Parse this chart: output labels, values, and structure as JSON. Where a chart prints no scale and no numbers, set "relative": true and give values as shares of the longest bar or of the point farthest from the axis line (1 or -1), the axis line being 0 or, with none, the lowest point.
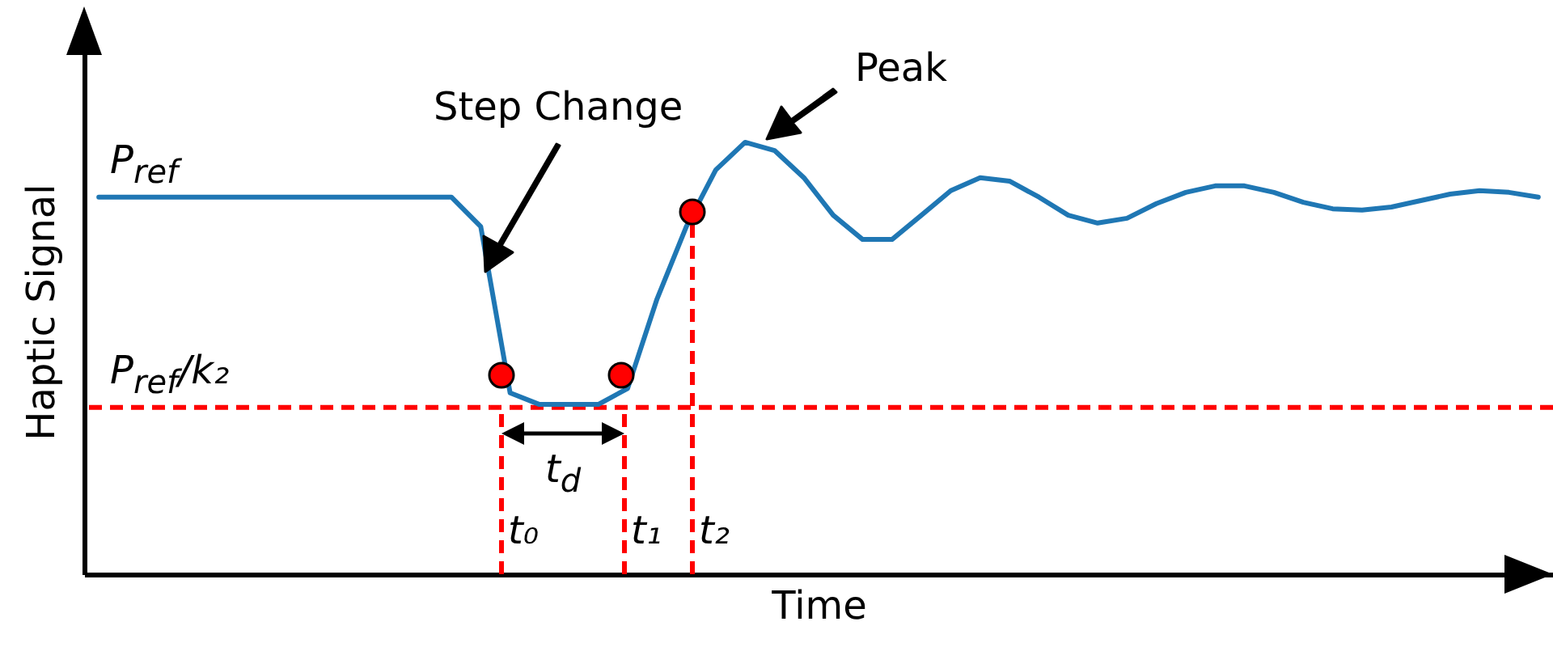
{
  "chart_data": {
    "type": "line",
    "relative": true,
    "xlabel": "Time",
    "ylabel": "Haptic Signal",
    "categories": [
      null,
      null,
      null,
      null,
      null,
      null,
      null,
      null,
      null,
      null,
      null,
      null,
      null,
      null,
      null,
      null,
      null,
      null,
      null,
      null,
      null,
      null,
      null,
      null,
      null,
      null,
      null,
      null,
      null,
      null,
      null,
      null,
      null,
      null,
      null,
      null,
      null,
      null,
      null,
      null,
      null,
      null,
      null,
      null,
      null,
      null,
      null,
      null,
      null,
      null
    ],
    "series": [
      {
        "color": "#1f77b4",
        "values": [
          0.873,
          0.873,
          0.873,
          0.873,
          0.873,
          0.873,
          0.873,
          0.873,
          0.873,
          0.873,
          0.873,
          0.873,
          0.873,
          0.805,
          0.42,
          0.393,
          0.393,
          0.393,
          0.43,
          0.637,
          0.805,
          0.936,
          1.0,
          0.981,
          0.918,
          0.831,
          0.775,
          0.775,
          0.831,
          0.888,
          0.918,
          0.91,
          0.873,
          0.831,
          0.813,
          0.824,
          0.858,
          0.884,
          0.899,
          0.899,
          0.884,
          0.861,
          0.846,
          0.843,
          0.85,
          0.865,
          0.88,
          0.888,
          0.884,
          0.873
        ]
      }
    ],
    "ref_lines": [
      {
        "axis": "y",
        "value": 0.386,
        "label": "P$_{ref}$/k₂",
        "color": "#ff0000",
        "line_style": "dashed"
      }
    ],
    "annotations": [
      {
        "text": "P$_{ref}$",
        "y": 0.873
      },
      "Step Change",
      "Peak",
      "t$_{d}$",
      "t₀",
      "t₁",
      "t₂"
    ]
  }
}
